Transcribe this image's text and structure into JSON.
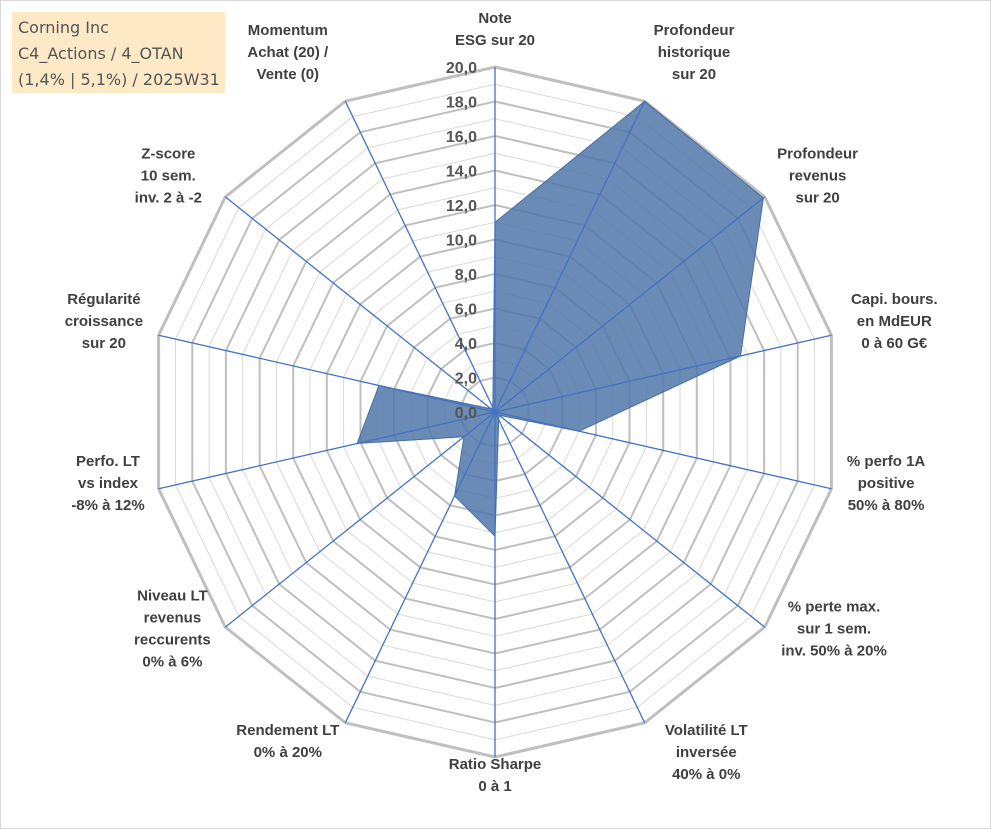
{
  "info_box": {
    "line1": "Corning Inc",
    "line2": "C4_Actions / 4_OTAN",
    "line3": "(1,4% | 5,1%) / 2025W31"
  },
  "chart_data": {
    "type": "radar",
    "scale": {
      "min": 0,
      "max": 20,
      "step": 2
    },
    "tick_labels": [
      "0,0",
      "2,0",
      "4,0",
      "6,0",
      "8,0",
      "10,0",
      "12,0",
      "14,0",
      "16,0",
      "18,0",
      "20,0"
    ],
    "axes": [
      {
        "lines": [
          "Note",
          "ESG sur 20"
        ]
      },
      {
        "lines": [
          "Profondeur",
          "historique",
          "sur 20"
        ]
      },
      {
        "lines": [
          "Profondeur",
          "revenus",
          "sur 20"
        ]
      },
      {
        "lines": [
          "Capi. bours.",
          "en MdEUR",
          "0 à 60 G€"
        ]
      },
      {
        "lines": [
          "% perfo 1A",
          "positive",
          "50% à 80%"
        ]
      },
      {
        "lines": [
          "% perte max.",
          "sur 1 sem.",
          "inv. 50% à 20%"
        ]
      },
      {
        "lines": [
          "Volatilité LT",
          "inversée",
          "40% à 0%"
        ]
      },
      {
        "lines": [
          "Ratio Sharpe",
          "0 à 1"
        ]
      },
      {
        "lines": [
          "Rendement LT",
          "0% à 20%"
        ]
      },
      {
        "lines": [
          "Niveau LT",
          "revenus",
          "reccurents",
          "0% à 6%"
        ]
      },
      {
        "lines": [
          "Perfo. LT",
          "vs index",
          "-8% à 12%"
        ]
      },
      {
        "lines": [
          "Régularité",
          "croissance",
          "sur 20"
        ]
      },
      {
        "lines": [
          "Z-score",
          "10 sem.",
          "inv. 2 à -2"
        ]
      },
      {
        "lines": [
          "Momentum",
          "Achat (20) /",
          "Vente (0)"
        ]
      }
    ],
    "series": [
      {
        "values": [
          11.0,
          20.0,
          19.9,
          14.6,
          5.0,
          0.3,
          0.5,
          7.2,
          5.4,
          2.3,
          8.2,
          6.9,
          0.3,
          0.3
        ]
      }
    ],
    "colors": {
      "fill": "#4f77a8",
      "stroke": "#4a6fa1",
      "spoke": "#4472c4",
      "grid_major": "#bfbfbf",
      "grid_minor": "#d9d9d9"
    }
  }
}
